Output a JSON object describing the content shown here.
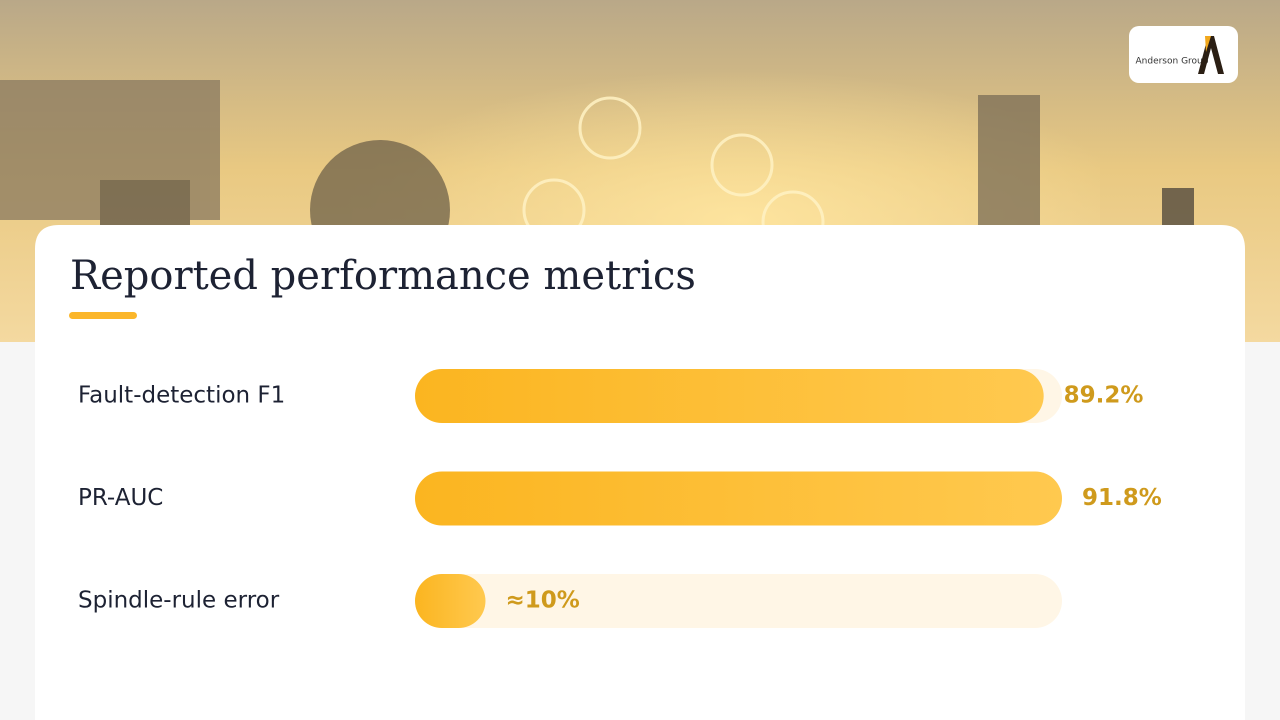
{
  "logo": {
    "name": "Anderson Group"
  },
  "chart_data": {
    "type": "bar",
    "orientation": "horizontal",
    "title": "Reported performance metrics",
    "categories": [
      "Fault-detection F1",
      "PR-AUC",
      "Spindle-rule error"
    ],
    "values": [
      89.2,
      91.8,
      10
    ],
    "value_labels": [
      "89.2%",
      "91.8%",
      "≈10%"
    ],
    "color": "#fbb62a"
  }
}
